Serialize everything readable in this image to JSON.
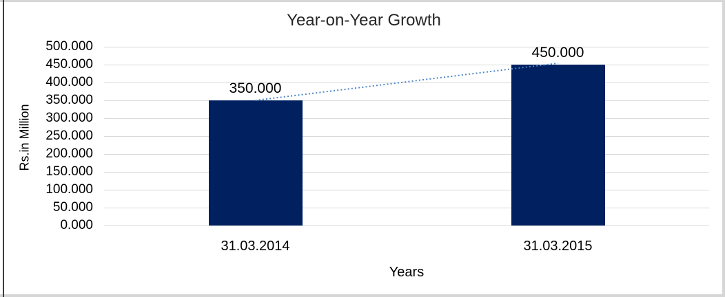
{
  "chart_data": {
    "type": "bar",
    "title": "Year-on-Year Growth",
    "xlabel": "Years",
    "ylabel": "Rs.in Million",
    "categories": [
      "31.03.2014",
      "31.03.2015"
    ],
    "values": [
      350,
      450
    ],
    "data_labels": [
      "350.000",
      "450.000"
    ],
    "ylim": [
      0,
      500
    ],
    "ytick_step": 50,
    "ytick_labels_top_down": [
      "500.000",
      "450.000",
      "400.000",
      "350.000",
      "300.000",
      "250.000",
      "200.000",
      "150.000",
      "100.000",
      "50.000",
      "0.000"
    ],
    "grid": true,
    "legend_position": "none",
    "trendline": {
      "style": "dotted",
      "color": "#4a86c8",
      "from_value": 350,
      "to_value": 450
    },
    "colors": {
      "bar": "#002060",
      "gridline": "#d9d9d9",
      "tick_text": "#000000",
      "title_text": "#262626",
      "frame_light": "#d6d6d6",
      "frame_dark_left": "#3d3d3d"
    }
  }
}
